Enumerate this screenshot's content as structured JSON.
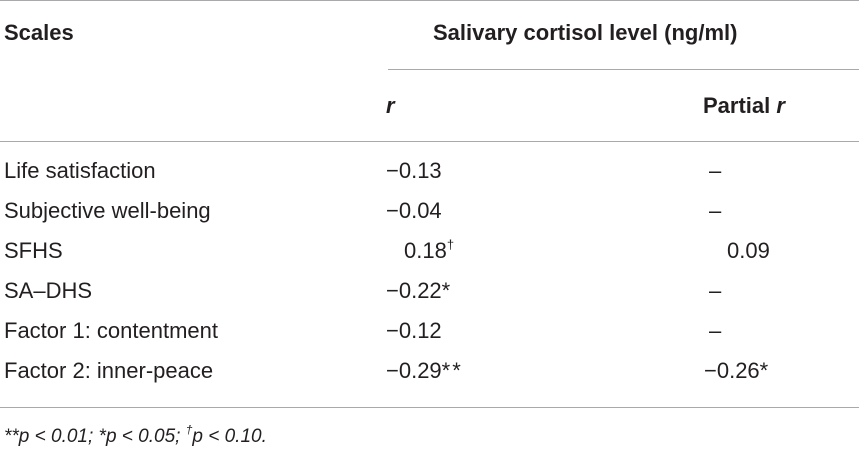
{
  "header": {
    "col_scales": "Scales",
    "col_group": "Salivary cortisol level (ng/ml)",
    "col_r": "r",
    "col_partial_prefix": "Partial ",
    "col_partial_r": "r"
  },
  "rows": [
    {
      "scale": "Life satisfaction",
      "r": "−0.13",
      "r_mark": "",
      "partial": "–",
      "partial_mark": ""
    },
    {
      "scale": "Subjective well-being",
      "r": "−0.04",
      "r_mark": "",
      "partial": "–",
      "partial_mark": ""
    },
    {
      "scale": "SFHS",
      "r": "0.18",
      "r_mark": "†",
      "partial": "0.09",
      "partial_mark": ""
    },
    {
      "scale": "SA–DHS",
      "r": "−0.22",
      "r_mark": "*",
      "partial": "–",
      "partial_mark": ""
    },
    {
      "scale": "Factor 1: contentment",
      "r": "−0.12",
      "r_mark": "",
      "partial": "–",
      "partial_mark": ""
    },
    {
      "scale": "Factor 2: inner-peace",
      "r": "−0.29",
      "r_mark": "**",
      "partial": "−0.26",
      "partial_mark": "*"
    }
  ],
  "footnote": {
    "p1": "**p < 0.01; *p < 0.05; ",
    "dagger": "†",
    "p2": "p < 0.10."
  }
}
